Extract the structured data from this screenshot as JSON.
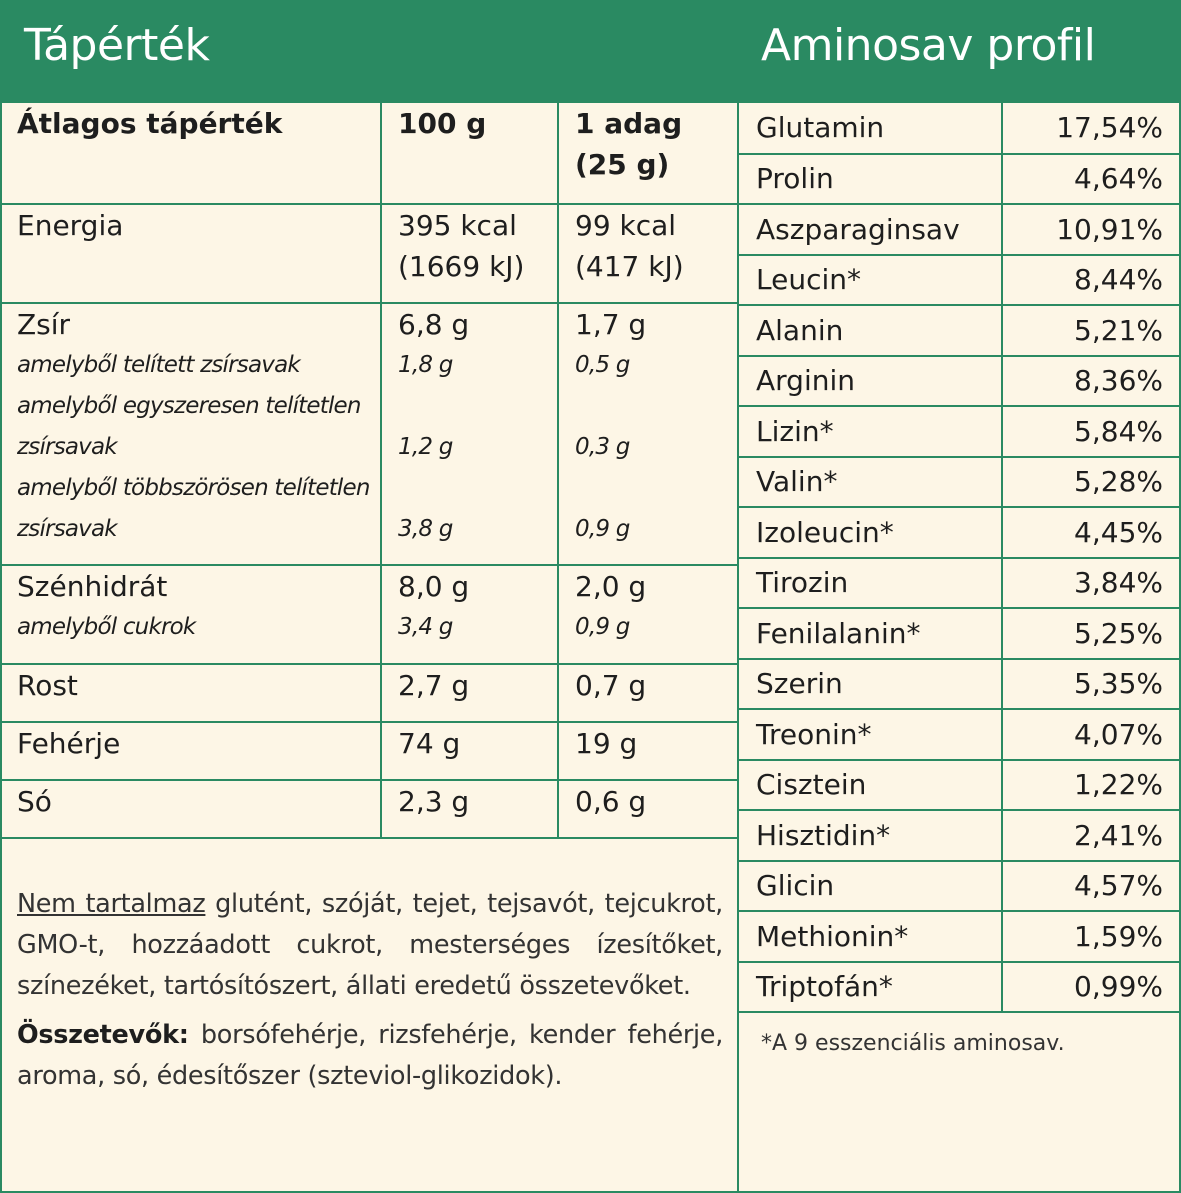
{
  "left_title": "Tápérték",
  "right_title": "Aminosav profil",
  "nutrition": {
    "headers": {
      "label": "Átlagos tápérték",
      "per100": "100 g",
      "portion_line1": "1 adag",
      "portion_line2": "(25 g)"
    },
    "energy": {
      "label": "Energia",
      "per100_kcal": "395 kcal",
      "per100_kj": "(1669 kJ)",
      "portion_kcal": "99 kcal",
      "portion_kj": "(417 kJ)"
    },
    "fat": {
      "label": "Zsír",
      "per100": "6,8 g",
      "portion": "1,7 g",
      "saturated_label": "amelyből telített zsírsavak",
      "saturated_100": "1,8 g",
      "saturated_portion": "0,5 g",
      "mono_label_1": "amelyből egyszeresen telítetlen",
      "mono_label_2": "zsírsavak",
      "mono_100": "1,2 g",
      "mono_portion": "0,3 g",
      "poly_label_1": "amelyből többszörösen telítetlen",
      "poly_label_2": "zsírsavak",
      "poly_100": "3,8 g",
      "poly_portion": "0,9 g"
    },
    "carbs": {
      "label": "Szénhidrát",
      "per100": "8,0 g",
      "portion": "2,0 g",
      "sugar_label": "amelyből cukrok",
      "sugar_100": "3,4 g",
      "sugar_portion": "0,9 g"
    },
    "fiber": {
      "label": "Rost",
      "per100": "2,7 g",
      "portion": "0,7 g"
    },
    "protein": {
      "label": "Fehérje",
      "per100": "74 g",
      "portion": "19 g"
    },
    "salt": {
      "label": "Só",
      "per100": "2,3 g",
      "portion": "0,6 g"
    }
  },
  "notes": {
    "free_from_label": "Nem tartalmaz",
    "free_from_text": " glutént, szóját, tejet, tejsavót, tejcukrot, GMO-t, hozzáadott cukrot, mesterséges ízesítőket, színezéket, tartósítószert, állati eredetű összetevőket.",
    "ingredients_label": "Összetevők:",
    "ingredients_text": " borsófehérje, rizsfehérje, kender fehérje, aroma, só, édesítőszer (szteviol-glikozidok)."
  },
  "amino_acids": [
    {
      "name": "Glutamin",
      "value": "17,54%"
    },
    {
      "name": "Prolin",
      "value": "4,64%"
    },
    {
      "name": "Aszparaginsav",
      "value": "10,91%"
    },
    {
      "name": "Leucin*",
      "value": "8,44%"
    },
    {
      "name": "Alanin",
      "value": "5,21%"
    },
    {
      "name": "Arginin",
      "value": "8,36%"
    },
    {
      "name": "Lizin*",
      "value": "5,84%"
    },
    {
      "name": "Valin*",
      "value": "5,28%"
    },
    {
      "name": "Izoleucin*",
      "value": "4,45%"
    },
    {
      "name": "Tirozin",
      "value": "3,84%"
    },
    {
      "name": "Fenilalanin*",
      "value": "5,25%"
    },
    {
      "name": "Szerin",
      "value": "5,35%"
    },
    {
      "name": "Treonin*",
      "value": "4,07%"
    },
    {
      "name": "Cisztein",
      "value": "1,22%"
    },
    {
      "name": "Hisztidin*",
      "value": "2,41%"
    },
    {
      "name": "Glicin",
      "value": "4,57%"
    },
    {
      "name": "Methionin*",
      "value": "1,59%"
    },
    {
      "name": "Triptofán*",
      "value": "0,99%"
    }
  ],
  "footnote": "*A 9 esszenciális aminosav.",
  "colors": {
    "accent": "#2a8a62",
    "background": "#fdf6e6"
  }
}
